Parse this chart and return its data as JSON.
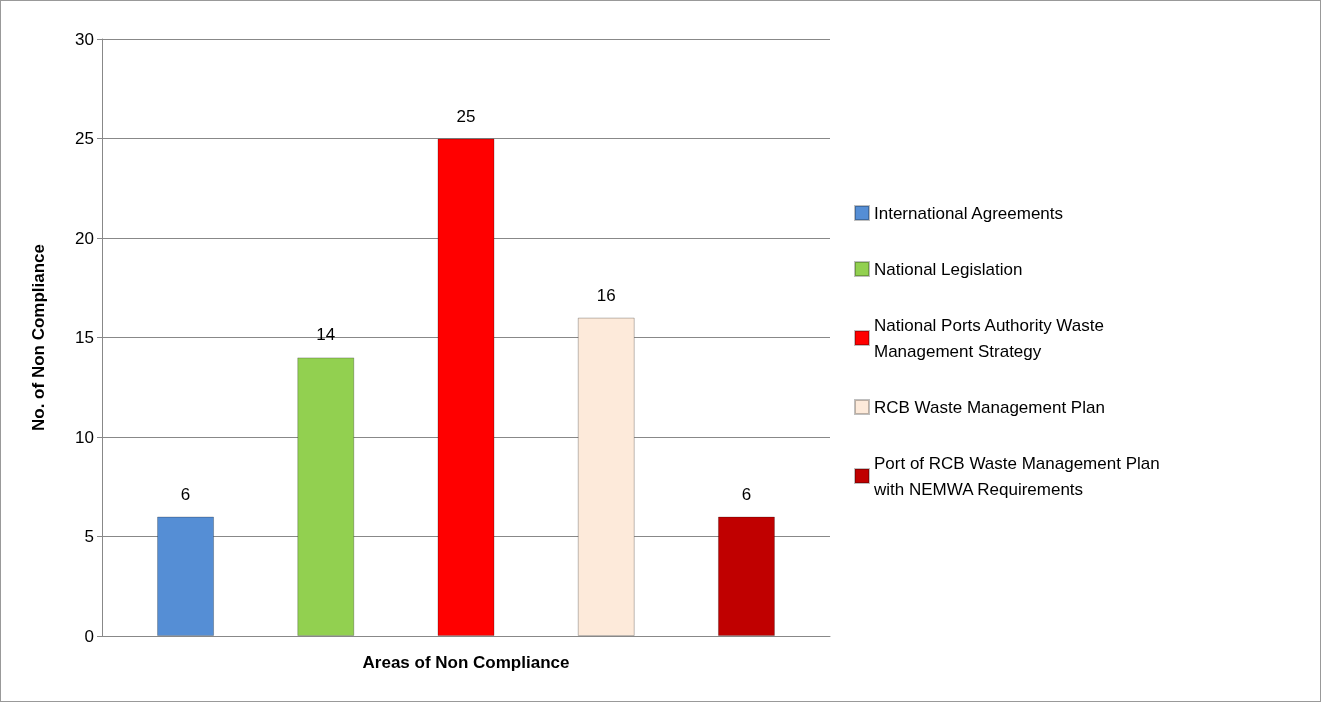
{
  "chart_data": {
    "type": "bar",
    "xlabel": "Areas of Non Compliance",
    "ylabel": "No. of Non Compliance",
    "categories": [
      null
    ],
    "series": [
      {
        "name": "International Agreements",
        "color": "#558ed5",
        "values": [
          6
        ]
      },
      {
        "name": "National Legislation",
        "color": "#92d050",
        "values": [
          14
        ]
      },
      {
        "name": "National Ports Authority Waste Management Strategy",
        "color": "#ff0000",
        "values": [
          25
        ]
      },
      {
        "name": "RCB Waste Management Plan",
        "color": "#fdeada",
        "values": [
          16
        ]
      },
      {
        "name": "Port of RCB Waste Management Plan with NEMWA Requirements",
        "color": "#c00000",
        "values": [
          6
        ]
      }
    ],
    "ylim": [
      0,
      30
    ],
    "yticks": [
      0,
      5,
      10,
      15,
      20,
      25,
      30
    ],
    "grid": "y",
    "legend": "right",
    "data_labels": true
  }
}
